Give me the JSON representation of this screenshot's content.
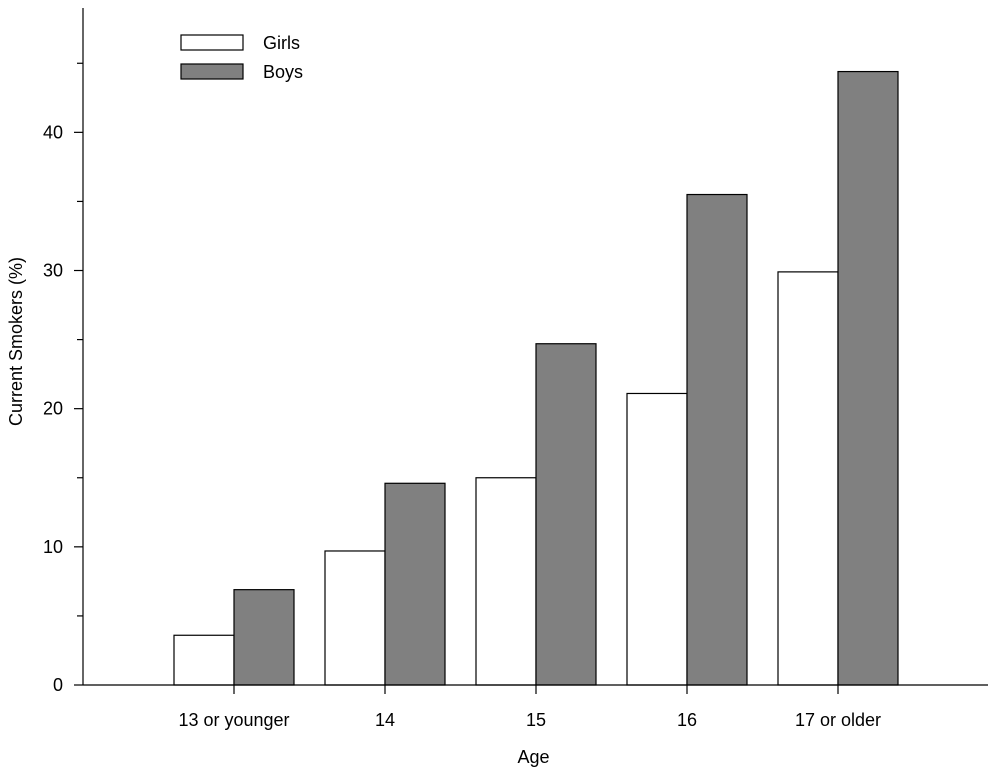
{
  "chart_data": {
    "type": "bar",
    "title": "",
    "xlabel": "Age",
    "ylabel": "Current Smokers (%)",
    "categories": [
      "13 or younger",
      "14",
      "15",
      "16",
      "17 or older"
    ],
    "series": [
      {
        "name": "Girls",
        "color": "#ffffff",
        "values": [
          3.6,
          9.7,
          15.0,
          21.1,
          29.9
        ]
      },
      {
        "name": "Boys",
        "color": "#808080",
        "values": [
          6.9,
          14.6,
          24.7,
          35.5,
          44.4
        ]
      }
    ],
    "ylim": [
      0,
      49
    ],
    "yticks": [
      0,
      10,
      20,
      30,
      40
    ],
    "ytick_labels": [
      "0",
      "10",
      "20",
      "30",
      "40"
    ],
    "y_minor_step": 5,
    "grid": false,
    "legend_position": "top-left"
  }
}
